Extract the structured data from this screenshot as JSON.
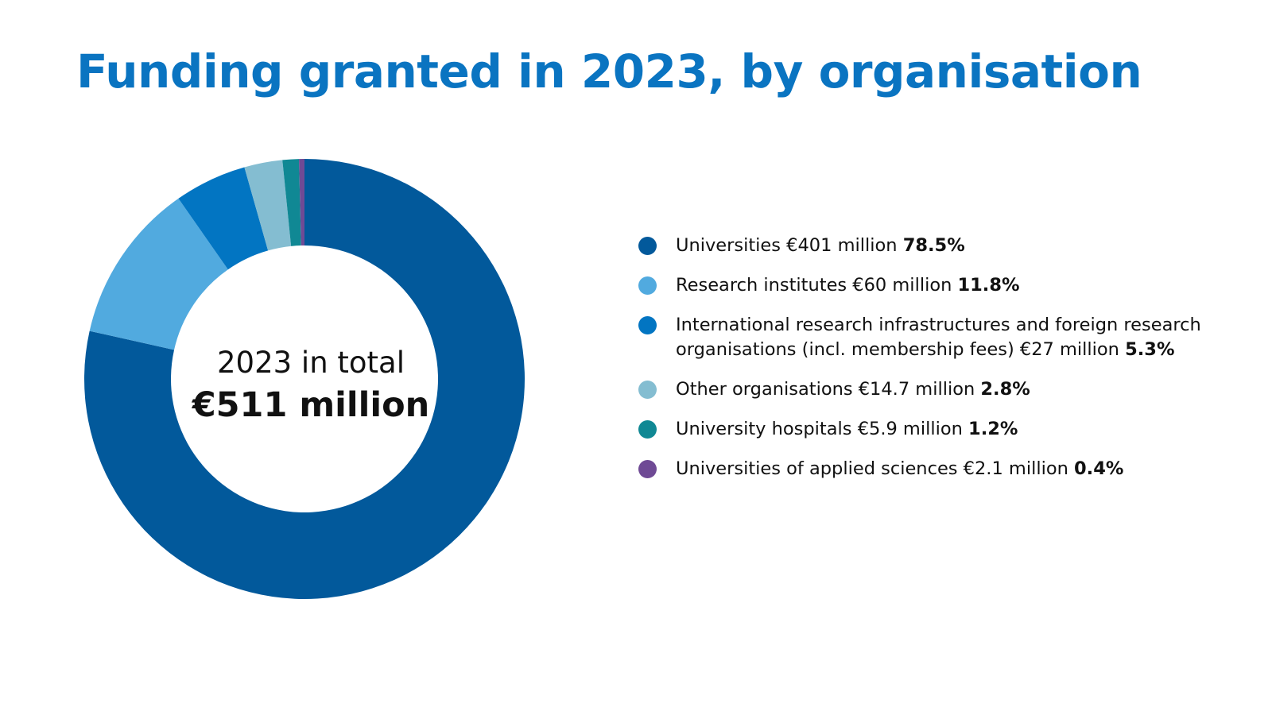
{
  "chart_data": {
    "type": "pie",
    "title": "Funding granted in 2023, by organisation",
    "center_label": "2023 in total",
    "center_value": "€511 million",
    "slices": [
      {
        "label": "Universities",
        "amount": "€401 million",
        "percent_label": "78.5%",
        "value": 78.5,
        "color": "#02599b"
      },
      {
        "label": "Research institutes",
        "amount": "€60 million",
        "percent_label": "11.8%",
        "value": 11.8,
        "color": "#51aadf"
      },
      {
        "label": "International research infrastructures and foreign research organisations (incl. membership fees)",
        "amount": "€27 million",
        "percent_label": "5.3%",
        "value": 5.3,
        "color": "#0275c2"
      },
      {
        "label": "Other organisations",
        "amount": "€14.7 million",
        "percent_label": "2.8%",
        "value": 2.8,
        "color": "#84bdd1"
      },
      {
        "label": "University hospitals",
        "amount": "€5.9 million",
        "percent_label": "1.2%",
        "value": 1.2,
        "color": "#108894"
      },
      {
        "label": "Universities of applied sciences",
        "amount": "€2.1 million",
        "percent_label": "0.4%",
        "value": 0.4,
        "color": "#6f4a95"
      }
    ]
  }
}
